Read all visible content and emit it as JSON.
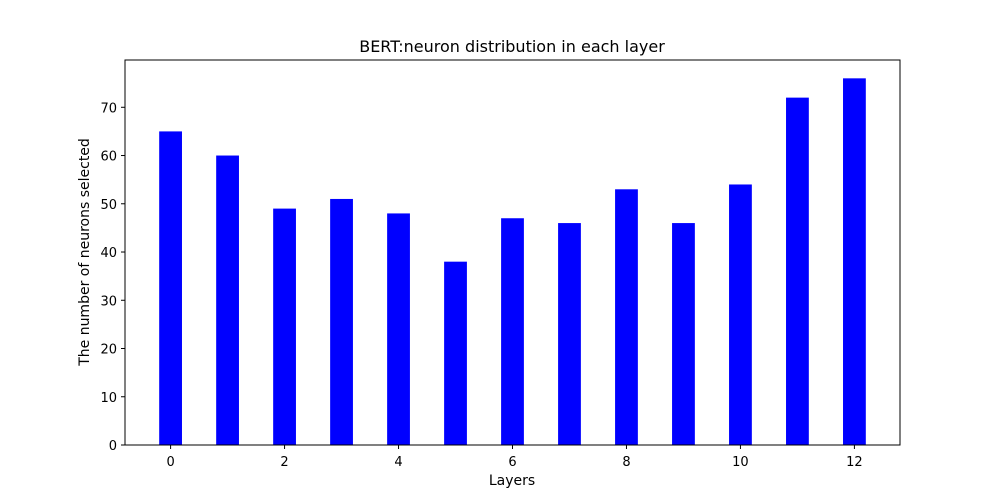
{
  "chart_data": {
    "type": "bar",
    "title": "BERT:neuron distribution in each layer",
    "xlabel": "Layers",
    "ylabel": "The number of neurons selected",
    "x": [
      0,
      1,
      2,
      3,
      4,
      5,
      6,
      7,
      8,
      9,
      10,
      11,
      12
    ],
    "values": [
      65,
      60,
      49,
      51,
      48,
      38,
      47,
      46,
      53,
      46,
      54,
      72,
      76
    ],
    "xlim": [
      -0.8,
      12.8
    ],
    "ylim": [
      0,
      79.8
    ],
    "xticks": [
      0,
      2,
      4,
      6,
      8,
      10,
      12
    ],
    "yticks": [
      0,
      10,
      20,
      30,
      40,
      50,
      60,
      70
    ],
    "bar_color": "#0000ff",
    "grid": false
  }
}
